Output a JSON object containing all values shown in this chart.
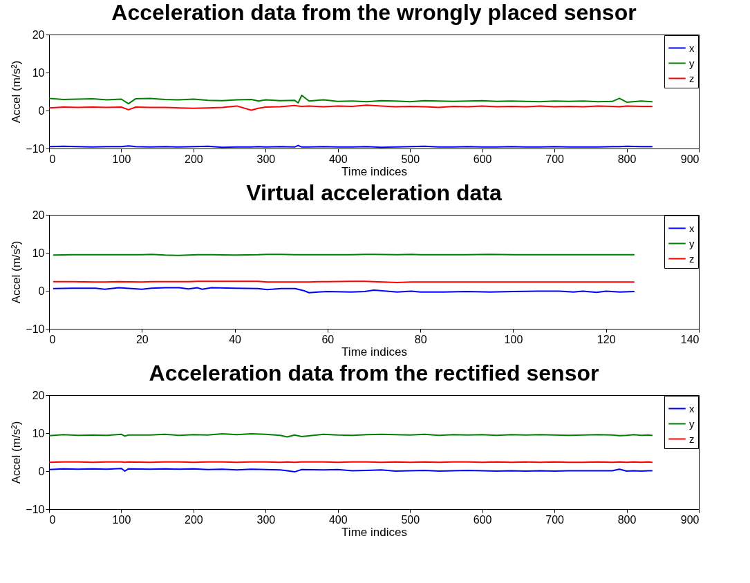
{
  "chart_data": [
    {
      "type": "line",
      "title": "Acceleration data from the wrongly placed sensor",
      "xlabel": "Time indices",
      "ylabel": "Accel (m/s²)",
      "xlim": [
        0,
        900
      ],
      "xticks": [
        0,
        100,
        200,
        300,
        400,
        500,
        600,
        700,
        800,
        900
      ],
      "ylim": [
        -10,
        20
      ],
      "yticks": [
        -10,
        0,
        10,
        20
      ],
      "grid": false,
      "legend": "top right",
      "x": [
        0,
        20,
        40,
        60,
        80,
        100,
        110,
        120,
        140,
        160,
        180,
        200,
        220,
        240,
        260,
        280,
        290,
        300,
        320,
        340,
        345,
        350,
        360,
        380,
        400,
        420,
        440,
        460,
        480,
        500,
        520,
        540,
        560,
        580,
        600,
        620,
        640,
        660,
        680,
        700,
        720,
        740,
        760,
        780,
        790,
        800,
        820,
        835
      ],
      "series": [
        {
          "name": "x",
          "color": "#0000ff",
          "values": [
            -9.5,
            -9.4,
            -9.5,
            -9.6,
            -9.5,
            -9.5,
            -9.3,
            -9.5,
            -9.6,
            -9.5,
            -9.6,
            -9.5,
            -9.4,
            -9.7,
            -9.6,
            -9.6,
            -9.5,
            -9.6,
            -9.5,
            -9.6,
            -9.2,
            -9.6,
            -9.6,
            -9.5,
            -9.6,
            -9.6,
            -9.5,
            -9.7,
            -9.6,
            -9.5,
            -9.4,
            -9.6,
            -9.6,
            -9.5,
            -9.6,
            -9.6,
            -9.5,
            -9.6,
            -9.6,
            -9.5,
            -9.6,
            -9.6,
            -9.6,
            -9.5,
            -9.5,
            -9.4,
            -9.5,
            -9.5
          ]
        },
        {
          "name": "y",
          "color": "#008000",
          "values": [
            3.2,
            2.9,
            3.0,
            3.1,
            2.8,
            3.0,
            1.8,
            3.1,
            3.2,
            2.9,
            2.8,
            3.0,
            2.7,
            2.6,
            2.8,
            2.9,
            2.5,
            2.8,
            2.6,
            2.7,
            2.0,
            4.0,
            2.5,
            2.8,
            2.4,
            2.5,
            2.3,
            2.6,
            2.5,
            2.3,
            2.6,
            2.5,
            2.4,
            2.5,
            2.6,
            2.4,
            2.5,
            2.4,
            2.3,
            2.5,
            2.4,
            2.5,
            2.3,
            2.4,
            3.2,
            2.2,
            2.5,
            2.3
          ]
        },
        {
          "name": "z",
          "color": "#ff0000",
          "values": [
            0.7,
            0.9,
            0.8,
            0.9,
            0.8,
            0.9,
            0.2,
            0.9,
            0.8,
            0.8,
            0.7,
            0.6,
            0.7,
            0.8,
            1.2,
            0.1,
            0.6,
            0.9,
            1.0,
            1.3,
            1.2,
            1.1,
            1.2,
            1.0,
            1.2,
            1.1,
            1.4,
            1.2,
            1.0,
            1.1,
            1.0,
            0.8,
            1.1,
            1.0,
            1.2,
            1.0,
            1.1,
            1.0,
            1.2,
            1.0,
            1.1,
            1.0,
            1.2,
            1.1,
            1.0,
            1.2,
            1.1,
            1.1
          ]
        }
      ]
    },
    {
      "type": "line",
      "title": "Virtual acceleration data",
      "xlabel": "Time indices",
      "ylabel": "Accel (m/s²)",
      "xlim": [
        0,
        140
      ],
      "xticks": [
        0,
        20,
        40,
        60,
        80,
        100,
        120,
        140
      ],
      "ylim": [
        -10,
        20
      ],
      "yticks": [
        -10,
        0,
        10,
        20
      ],
      "grid": false,
      "legend": "top right",
      "x": [
        1,
        5,
        10,
        12,
        15,
        20,
        22,
        25,
        28,
        30,
        32,
        33,
        35,
        40,
        45,
        47,
        50,
        53,
        55,
        56,
        58,
        60,
        65,
        68,
        70,
        75,
        78,
        80,
        85,
        90,
        95,
        100,
        105,
        110,
        113,
        115,
        118,
        120,
        123,
        126
      ],
      "series": [
        {
          "name": "x",
          "color": "#0000ff",
          "values": [
            0.6,
            0.7,
            0.7,
            0.4,
            0.8,
            0.4,
            0.7,
            0.8,
            0.8,
            0.5,
            0.8,
            0.4,
            0.8,
            0.7,
            0.6,
            0.3,
            0.6,
            0.6,
            0.0,
            -0.5,
            -0.3,
            -0.2,
            -0.3,
            -0.2,
            0.2,
            -0.3,
            -0.1,
            -0.3,
            -0.3,
            -0.2,
            -0.3,
            -0.2,
            -0.1,
            -0.1,
            -0.3,
            -0.1,
            -0.4,
            -0.1,
            -0.3,
            -0.2
          ]
        },
        {
          "name": "y",
          "color": "#008000",
          "values": [
            9.4,
            9.5,
            9.5,
            9.5,
            9.5,
            9.5,
            9.6,
            9.4,
            9.3,
            9.4,
            9.5,
            9.5,
            9.5,
            9.4,
            9.5,
            9.6,
            9.6,
            9.5,
            9.5,
            9.5,
            9.5,
            9.5,
            9.5,
            9.6,
            9.6,
            9.5,
            9.6,
            9.5,
            9.5,
            9.5,
            9.6,
            9.5,
            9.5,
            9.5,
            9.5,
            9.5,
            9.5,
            9.5,
            9.5,
            9.5
          ]
        },
        {
          "name": "z",
          "color": "#ff0000",
          "values": [
            2.4,
            2.4,
            2.3,
            2.3,
            2.4,
            2.3,
            2.4,
            2.4,
            2.4,
            2.4,
            2.5,
            2.5,
            2.5,
            2.5,
            2.5,
            2.3,
            2.3,
            2.3,
            2.3,
            2.3,
            2.4,
            2.4,
            2.5,
            2.5,
            2.4,
            2.2,
            2.3,
            2.3,
            2.3,
            2.3,
            2.3,
            2.3,
            2.3,
            2.3,
            2.3,
            2.3,
            2.3,
            2.3,
            2.3,
            2.3
          ]
        }
      ]
    },
    {
      "type": "line",
      "title": "Acceleration data from the rectified sensor",
      "xlabel": "Time indices",
      "ylabel": "Accel (m/s²)",
      "xlim": [
        0,
        900
      ],
      "xticks": [
        0,
        100,
        200,
        300,
        400,
        500,
        600,
        700,
        800,
        900
      ],
      "ylim": [
        -10,
        20
      ],
      "yticks": [
        -10,
        0,
        10,
        20
      ],
      "grid": false,
      "legend": "top right",
      "x": [
        0,
        20,
        40,
        60,
        80,
        100,
        105,
        110,
        140,
        160,
        180,
        200,
        220,
        240,
        260,
        280,
        300,
        320,
        330,
        340,
        350,
        380,
        400,
        420,
        440,
        460,
        480,
        500,
        520,
        540,
        560,
        580,
        600,
        620,
        640,
        660,
        680,
        700,
        720,
        740,
        760,
        780,
        790,
        800,
        810,
        820,
        830,
        835
      ],
      "series": [
        {
          "name": "x",
          "color": "#0000ff",
          "values": [
            0.4,
            0.6,
            0.5,
            0.6,
            0.5,
            0.7,
            0.0,
            0.6,
            0.5,
            0.6,
            0.5,
            0.6,
            0.4,
            0.5,
            0.3,
            0.5,
            0.4,
            0.3,
            0.1,
            -0.2,
            0.4,
            0.3,
            0.4,
            0.1,
            0.2,
            0.3,
            0.0,
            0.1,
            0.2,
            0.0,
            0.1,
            0.2,
            0.1,
            0.0,
            0.1,
            0.0,
            0.1,
            0.0,
            0.1,
            0.1,
            0.1,
            0.1,
            0.5,
            0.0,
            0.1,
            0.0,
            0.1,
            0.1
          ]
        },
        {
          "name": "y",
          "color": "#008000",
          "values": [
            9.3,
            9.6,
            9.4,
            9.5,
            9.4,
            9.7,
            9.2,
            9.5,
            9.5,
            9.7,
            9.4,
            9.6,
            9.5,
            9.8,
            9.6,
            9.8,
            9.7,
            9.4,
            9.0,
            9.5,
            9.1,
            9.7,
            9.5,
            9.4,
            9.6,
            9.7,
            9.6,
            9.5,
            9.7,
            9.4,
            9.6,
            9.5,
            9.6,
            9.4,
            9.6,
            9.5,
            9.6,
            9.5,
            9.4,
            9.5,
            9.6,
            9.5,
            9.3,
            9.4,
            9.6,
            9.4,
            9.5,
            9.4
          ]
        },
        {
          "name": "z",
          "color": "#ff0000",
          "values": [
            2.3,
            2.4,
            2.4,
            2.3,
            2.4,
            2.4,
            2.3,
            2.4,
            2.3,
            2.4,
            2.4,
            2.3,
            2.4,
            2.4,
            2.3,
            2.4,
            2.4,
            2.3,
            2.4,
            2.3,
            2.4,
            2.4,
            2.3,
            2.4,
            2.4,
            2.3,
            2.4,
            2.3,
            2.4,
            2.3,
            2.4,
            2.4,
            2.3,
            2.4,
            2.3,
            2.4,
            2.3,
            2.4,
            2.3,
            2.3,
            2.4,
            2.3,
            2.4,
            2.3,
            2.4,
            2.3,
            2.4,
            2.3
          ]
        }
      ]
    }
  ]
}
